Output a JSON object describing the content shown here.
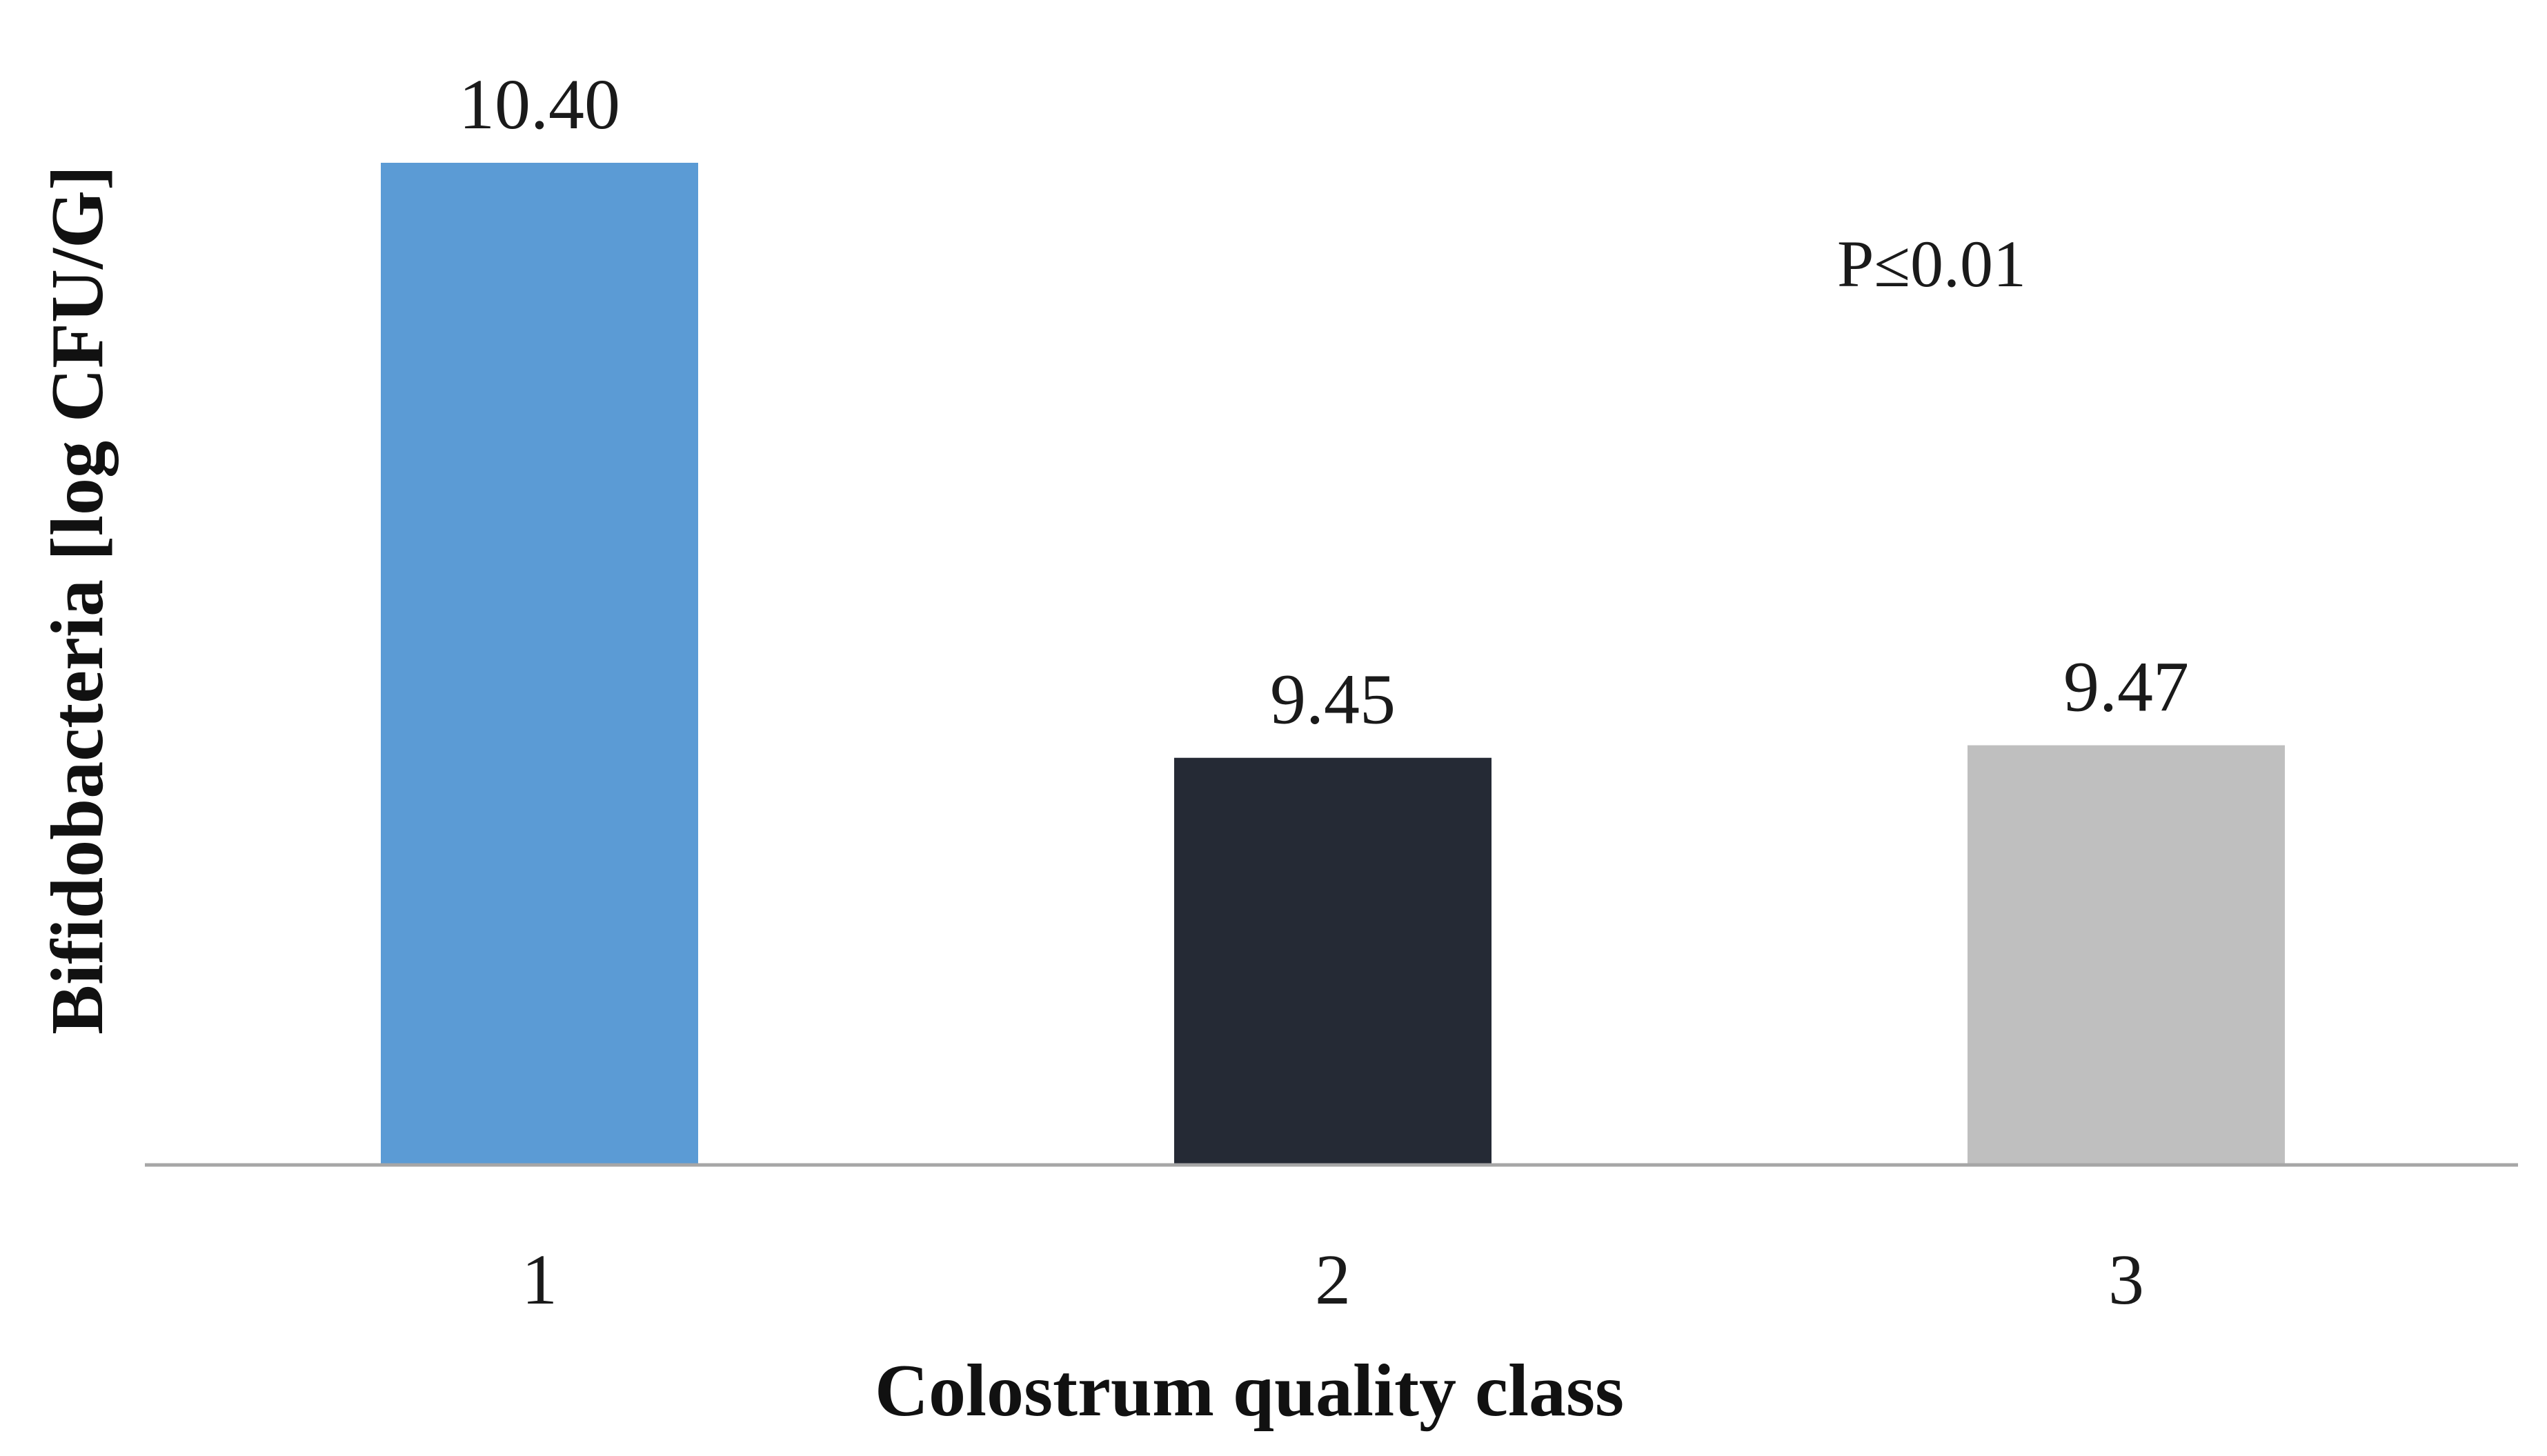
{
  "chart_data": {
    "type": "bar",
    "title": "",
    "xlabel": "Colostrum quality class",
    "ylabel": "Bifidobacteria [log CFU/G]",
    "categories": [
      "1",
      "2",
      "3"
    ],
    "values": [
      10.4,
      9.45,
      9.47
    ],
    "data_labels": [
      "10.40",
      "9.45",
      "9.47"
    ],
    "colors": [
      "#5b9bd5",
      "#252a35",
      "#bfbfbf"
    ],
    "annotation": "P≤0.01",
    "ylim": [
      8.8,
      10.4
    ],
    "grid": false,
    "legend": "none",
    "axis_color": "#a6a6a6"
  }
}
